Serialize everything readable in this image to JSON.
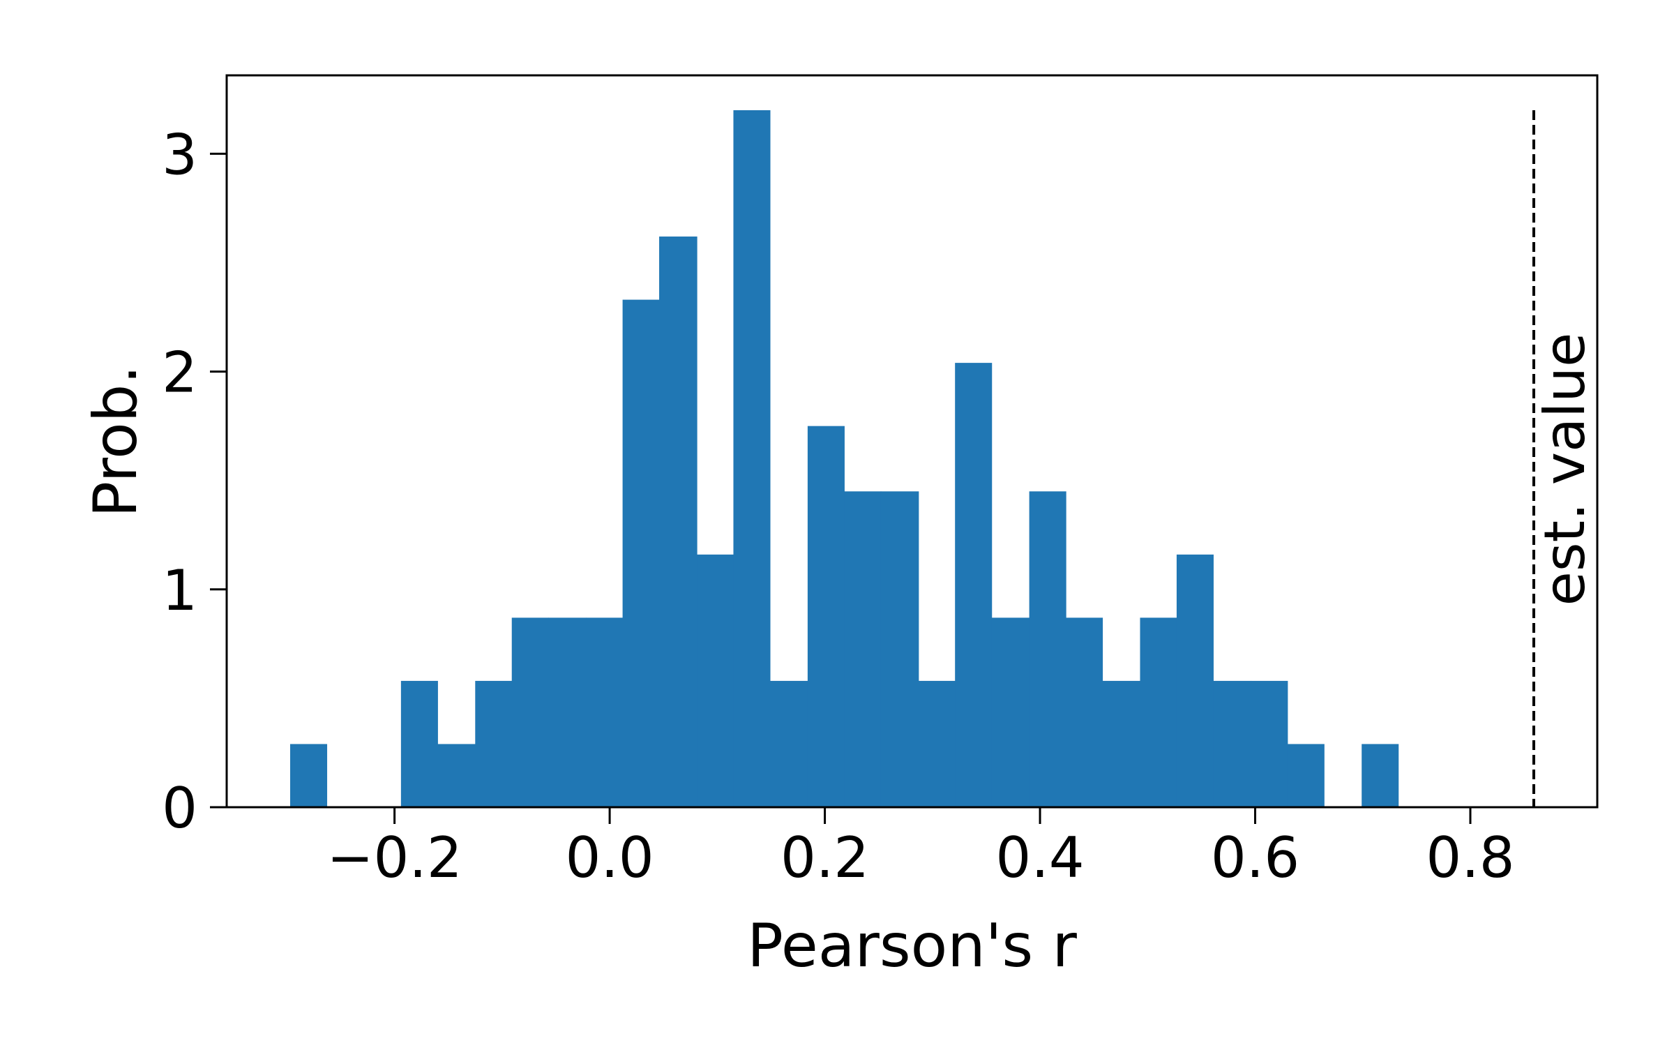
{
  "chart_data": {
    "type": "bar",
    "title": "",
    "xlabel": "Pearson's r",
    "ylabel": "Prob.",
    "xlim": [
      -0.356,
      0.918
    ],
    "ylim": [
      0,
      3.36
    ],
    "grid": false,
    "color": "#2077b4",
    "bin_edges": [
      -0.297,
      -0.263,
      -0.228,
      -0.194,
      -0.16,
      -0.125,
      -0.091,
      -0.057,
      -0.022,
      0.012,
      0.046,
      0.081,
      0.115,
      0.149,
      0.184,
      0.218,
      0.252,
      0.287,
      0.321,
      0.355,
      0.39,
      0.424,
      0.458,
      0.493,
      0.527,
      0.561,
      0.596,
      0.63,
      0.664,
      0.699,
      0.733
    ],
    "values": [
      0.29,
      0,
      0,
      0.58,
      0.29,
      0.58,
      0.87,
      0.87,
      0.87,
      2.33,
      2.62,
      1.16,
      3.2,
      0.58,
      1.75,
      1.45,
      1.45,
      0.58,
      2.04,
      0.87,
      1.45,
      0.87,
      0.58,
      0.87,
      1.16,
      0.58,
      0.58,
      0.29,
      0,
      0.29
    ],
    "x_ticks": [
      {
        "value": -0.2,
        "label": "−0.2"
      },
      {
        "value": 0.0,
        "label": "0.0"
      },
      {
        "value": 0.2,
        "label": "0.2"
      },
      {
        "value": 0.4,
        "label": "0.4"
      },
      {
        "value": 0.6,
        "label": "0.6"
      },
      {
        "value": 0.8,
        "label": "0.8"
      }
    ],
    "y_ticks": [
      {
        "value": 0,
        "label": "0"
      },
      {
        "value": 1,
        "label": "1"
      },
      {
        "value": 2,
        "label": "2"
      },
      {
        "value": 3,
        "label": "3"
      }
    ],
    "reference_line": {
      "x": 0.859,
      "y_top": 3.2,
      "style": "dashed",
      "label": "est. value"
    }
  }
}
